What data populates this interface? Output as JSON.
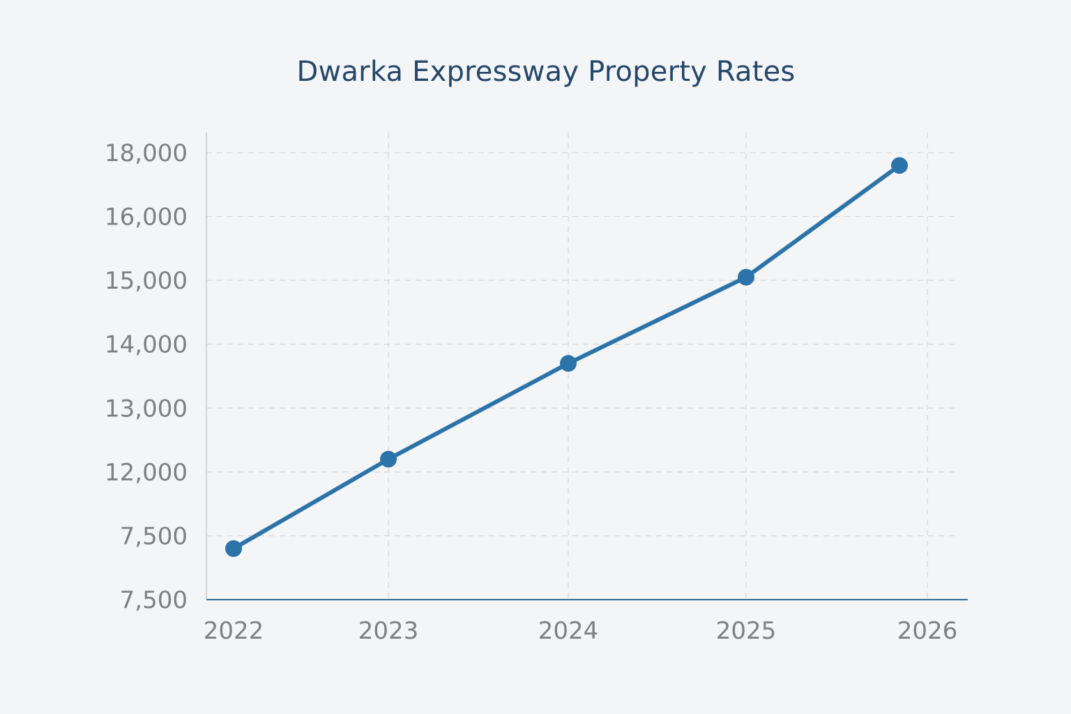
{
  "chart_data": {
    "type": "line",
    "title": "Dwarka Expressway Property Rates",
    "xlabel": "",
    "ylabel": "",
    "x": [
      "2022",
      "2023",
      "2024",
      "2025",
      "2026"
    ],
    "y_tick_labels": [
      "18,000",
      "16,000",
      "15,000",
      "14,000",
      "13,000",
      "12,000",
      "7,500",
      "7,500"
    ],
    "series": [
      {
        "values": [
          10800,
          12200,
          13700,
          15050,
          17600
        ]
      }
    ],
    "grid": true,
    "colors": {
      "line": "#2b73a8",
      "title": "#24476a",
      "tick": "#7d7f84",
      "grid": "#d4d6da",
      "x_axis": "#2c6b93"
    }
  }
}
